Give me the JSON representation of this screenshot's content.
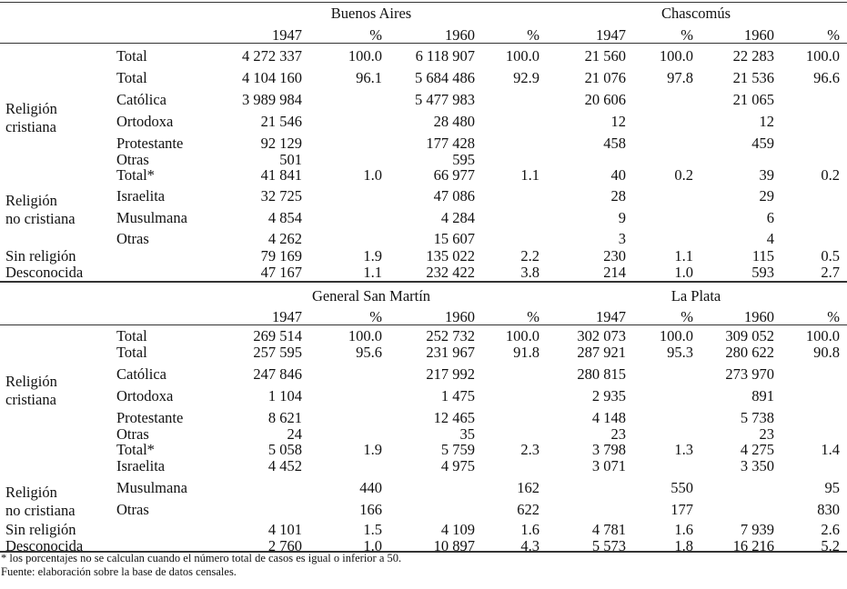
{
  "columns": {
    "years": [
      "1947",
      "%",
      "1960",
      "%",
      "1947",
      "%",
      "1960",
      "%"
    ]
  },
  "sections": [
    {
      "cities": [
        "Buenos Aires",
        "Chascomús"
      ],
      "groups": {
        "cristiana": "Religión\ncristiana",
        "no_cristiana": "Religión\nno cristiana"
      },
      "rows": [
        {
          "label": "",
          "sub": "Total",
          "v": [
            "4 272 337",
            "100.0",
            "6 118 907",
            "100.0",
            "21 560",
            "100.0",
            "22 283",
            "100.0"
          ]
        },
        {
          "label": "",
          "sub": "Total",
          "v": [
            "4 104 160",
            "96.1",
            "5 684 486",
            "92.9",
            "21 076",
            "97.8",
            "21 536",
            "96.6"
          ]
        },
        {
          "label": "",
          "sub": "Católica",
          "v": [
            "3 989 984",
            "",
            "5 477 983",
            "",
            "20 606",
            "",
            "21 065",
            ""
          ]
        },
        {
          "label": "",
          "sub": "Ortodoxa",
          "v": [
            "21 546",
            "",
            "28 480",
            "",
            "12",
            "",
            "12",
            ""
          ]
        },
        {
          "label": "",
          "sub": "Protestante",
          "v": [
            "92 129",
            "",
            "177 428",
            "",
            "458",
            "",
            "459",
            ""
          ]
        },
        {
          "label": "",
          "sub": "Otras",
          "v": [
            "501",
            "",
            "595",
            "",
            "",
            "",
            "",
            ""
          ]
        },
        {
          "label": "",
          "sub": "Total*",
          "v": [
            "41 841",
            "1.0",
            "66 977",
            "1.1",
            "40",
            "0.2",
            "39",
            "0.2"
          ]
        },
        {
          "label": "",
          "sub": "Israelita",
          "v": [
            "32 725",
            "",
            "47 086",
            "",
            "28",
            "",
            "29",
            ""
          ]
        },
        {
          "label": "",
          "sub": "Musulmana",
          "v": [
            "4 854",
            "",
            "4 284",
            "",
            "9",
            "",
            "6",
            ""
          ]
        },
        {
          "label": "",
          "sub": "Otras",
          "v": [
            "4 262",
            "",
            "15 607",
            "",
            "3",
            "",
            "4",
            ""
          ]
        },
        {
          "label": "Sin religión",
          "sub": "",
          "v": [
            "79 169",
            "1.9",
            "135 022",
            "2.2",
            "230",
            "1.1",
            "115",
            "0.5"
          ]
        },
        {
          "label": "Desconocida",
          "sub": "",
          "v": [
            "47 167",
            "1.1",
            "232 422",
            "3.8",
            "214",
            "1.0",
            "593",
            "2.7"
          ]
        }
      ]
    },
    {
      "cities": [
        "General San Martín",
        "La Plata"
      ],
      "groups": {
        "cristiana": "Religión\ncristiana",
        "no_cristiana": "Religión\nno cristiana"
      },
      "rows": [
        {
          "label": "",
          "sub": "Total",
          "v": [
            "269 514",
            "100.0",
            "252 732",
            "100.0",
            "302 073",
            "100.0",
            "309 052",
            "100.0"
          ]
        },
        {
          "label": "",
          "sub": "Total",
          "v": [
            "257 595",
            "95.6",
            "231 967",
            "91.8",
            "287 921",
            "95.3",
            "280 622",
            "90.8"
          ]
        },
        {
          "label": "",
          "sub": "Católica",
          "v": [
            "247 846",
            "",
            "217 992",
            "",
            "280 815",
            "",
            "273 970",
            ""
          ]
        },
        {
          "label": "",
          "sub": "Ortodoxa",
          "v": [
            "1 104",
            "",
            "1 475",
            "",
            "2 935",
            "",
            "891",
            ""
          ]
        },
        {
          "label": "",
          "sub": "Protestante",
          "v": [
            "8 621",
            "",
            "12 465",
            "",
            "4 148",
            "",
            "5 738",
            ""
          ]
        },
        {
          "label": "",
          "sub": "Otras",
          "v": [
            "24",
            "",
            "35",
            "",
            "23",
            "",
            "23",
            ""
          ]
        },
        {
          "label": "",
          "sub": "Total*",
          "v": [
            "5 058",
            "1.9",
            "5 759",
            "2.3",
            "3 798",
            "1.3",
            "4 275",
            "1.4"
          ]
        },
        {
          "label": "",
          "sub": "Israelita",
          "v": [
            "4 452",
            "",
            "4 975",
            "",
            "3 071",
            "",
            "3 350",
            ""
          ]
        },
        {
          "label": "",
          "sub": "Musulmana",
          "v": [
            "",
            "440",
            "",
            "162",
            "",
            "550",
            "",
            "95"
          ]
        },
        {
          "label": "",
          "sub": "Otras",
          "v": [
            "",
            "166",
            "",
            "622",
            "",
            "177",
            "",
            "830"
          ]
        },
        {
          "label": "Sin religión",
          "sub": "",
          "v": [
            "4 101",
            "1.5",
            "4 109",
            "1.6",
            "4 781",
            "1.6",
            "7 939",
            "2.6"
          ]
        },
        {
          "label": "Desconocida",
          "sub": "",
          "v": [
            "2 760",
            "1.0",
            "10 897",
            "4.3",
            "5 573",
            "1.8",
            "16 216",
            "5.2"
          ]
        }
      ]
    }
  ],
  "footnotes": {
    "note": "* los porcentajes no se calculan cuando el número total de casos es igual o inferior a 50.",
    "source": "Fuente: elaboración sobre la base de datos censales."
  }
}
